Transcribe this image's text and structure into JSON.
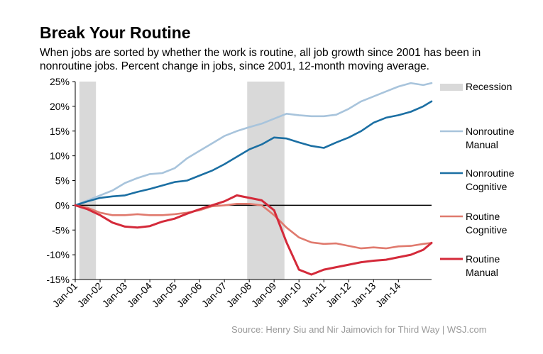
{
  "chart_data": {
    "type": "line",
    "title": "Break Your Routine",
    "subtitle": "When jobs are sorted by whether the work is routine, all job growth since 2001 has been in nonroutine jobs. Percent change in jobs, since 2001, 12-month moving average.",
    "source": "Source: Henry Siu and Nir Jaimovich for Third Way  |  WSJ.com",
    "xlim": [
      "2001-01",
      "2015-05"
    ],
    "ylim": [
      -15,
      25
    ],
    "y_ticks": [
      25,
      20,
      15,
      10,
      5,
      0,
      -5,
      -10,
      -15
    ],
    "y_tick_labels": [
      "25%",
      "20%",
      "15%",
      "10%",
      "5%",
      "0%",
      "-5%",
      "-10%",
      "-15%"
    ],
    "x_ticks": [
      "2001-01",
      "2002-01",
      "2003-01",
      "2004-01",
      "2005-01",
      "2006-01",
      "2007-01",
      "2008-01",
      "2009-01",
      "2010-01",
      "2011-01",
      "2012-01",
      "2013-01",
      "2014-01"
    ],
    "x_tick_labels": [
      "Jan-01",
      "Jan-02",
      "Jan-03",
      "Jan-04",
      "Jan-05",
      "Jan-06",
      "Jan-07",
      "Jan-08",
      "Jan-09",
      "Jan-10",
      "Jan-11",
      "Jan-12",
      "Jan-13",
      "Jan-14"
    ],
    "recessions": [
      {
        "start": "2001-03",
        "end": "2001-11"
      },
      {
        "start": "2007-12",
        "end": "2009-06"
      }
    ],
    "legend_position": "right",
    "recession_label": "Recession",
    "recession_color": "#d9d9d9",
    "series": [
      {
        "name": "Nonroutine Manual",
        "label_lines": [
          "Nonroutine",
          "Manual"
        ],
        "color": "#a8c4dc",
        "x": [
          "2001-01",
          "2001-07",
          "2002-01",
          "2002-07",
          "2003-01",
          "2003-07",
          "2004-01",
          "2004-07",
          "2005-01",
          "2005-07",
          "2006-01",
          "2006-07",
          "2007-01",
          "2007-07",
          "2008-01",
          "2008-07",
          "2009-01",
          "2009-07",
          "2010-01",
          "2010-07",
          "2011-01",
          "2011-07",
          "2012-01",
          "2012-07",
          "2013-01",
          "2013-07",
          "2014-01",
          "2014-07",
          "2015-01",
          "2015-05"
        ],
        "values": [
          0,
          1.0,
          2.0,
          3.0,
          4.5,
          5.5,
          6.3,
          6.5,
          7.5,
          9.5,
          11.0,
          12.5,
          14.0,
          15.0,
          15.8,
          16.5,
          17.5,
          18.5,
          18.2,
          18.0,
          18.0,
          18.3,
          19.5,
          21.0,
          22.0,
          23.0,
          24.0,
          24.7,
          24.3,
          24.7
        ]
      },
      {
        "name": "Nonroutine Cognitive",
        "label_lines": [
          "Nonroutine",
          "Cognitive"
        ],
        "color": "#1b6fa3",
        "x": [
          "2001-01",
          "2001-07",
          "2002-01",
          "2002-07",
          "2003-01",
          "2003-07",
          "2004-01",
          "2004-07",
          "2005-01",
          "2005-07",
          "2006-01",
          "2006-07",
          "2007-01",
          "2007-07",
          "2008-01",
          "2008-07",
          "2009-01",
          "2009-07",
          "2010-01",
          "2010-07",
          "2011-01",
          "2011-07",
          "2012-01",
          "2012-07",
          "2013-01",
          "2013-07",
          "2014-01",
          "2014-07",
          "2015-01",
          "2015-05"
        ],
        "values": [
          0,
          0.8,
          1.5,
          1.8,
          2.0,
          2.7,
          3.3,
          4.0,
          4.7,
          5.0,
          6.0,
          7.0,
          8.3,
          9.8,
          11.3,
          12.3,
          13.7,
          13.5,
          12.7,
          12.0,
          11.6,
          12.7,
          13.7,
          15.0,
          16.7,
          17.7,
          18.2,
          18.9,
          20.0,
          21.0
        ]
      },
      {
        "name": "Routine Cognitive",
        "label_lines": [
          "Routine",
          "Cognitive"
        ],
        "color": "#e07a6e",
        "x": [
          "2001-01",
          "2001-07",
          "2002-01",
          "2002-07",
          "2003-01",
          "2003-07",
          "2004-01",
          "2004-07",
          "2005-01",
          "2005-07",
          "2006-01",
          "2006-07",
          "2007-01",
          "2007-07",
          "2008-01",
          "2008-07",
          "2009-01",
          "2009-07",
          "2010-01",
          "2010-07",
          "2011-01",
          "2011-07",
          "2012-01",
          "2012-07",
          "2013-01",
          "2013-07",
          "2014-01",
          "2014-07",
          "2015-01",
          "2015-05"
        ],
        "values": [
          0,
          -0.5,
          -1.5,
          -2.0,
          -2.0,
          -1.8,
          -2.0,
          -2.0,
          -1.8,
          -1.5,
          -1.0,
          -0.2,
          0,
          0.3,
          0.3,
          0,
          -2.0,
          -4.5,
          -6.5,
          -7.5,
          -7.8,
          -7.7,
          -8.2,
          -8.7,
          -8.5,
          -8.7,
          -8.3,
          -8.2,
          -7.8,
          -7.6
        ]
      },
      {
        "name": "Routine Manual",
        "label_lines": [
          "Routine",
          "Manual"
        ],
        "color": "#d42a3a",
        "x": [
          "2001-01",
          "2001-07",
          "2002-01",
          "2002-07",
          "2003-01",
          "2003-07",
          "2004-01",
          "2004-07",
          "2005-01",
          "2005-07",
          "2006-01",
          "2006-07",
          "2007-01",
          "2007-07",
          "2008-01",
          "2008-07",
          "2009-01",
          "2009-07",
          "2010-01",
          "2010-07",
          "2011-01",
          "2011-07",
          "2012-01",
          "2012-07",
          "2013-01",
          "2013-07",
          "2014-01",
          "2014-07",
          "2015-01",
          "2015-05"
        ],
        "values": [
          0,
          -0.8,
          -2.0,
          -3.5,
          -4.3,
          -4.5,
          -4.2,
          -3.3,
          -2.7,
          -1.7,
          -0.8,
          0,
          0.8,
          2.0,
          1.5,
          1.0,
          -1.0,
          -7.5,
          -13.0,
          -14.0,
          -13.0,
          -12.5,
          -12.0,
          -11.5,
          -11.2,
          -11.0,
          -10.5,
          -10.0,
          -9.0,
          -7.6
        ]
      }
    ]
  }
}
